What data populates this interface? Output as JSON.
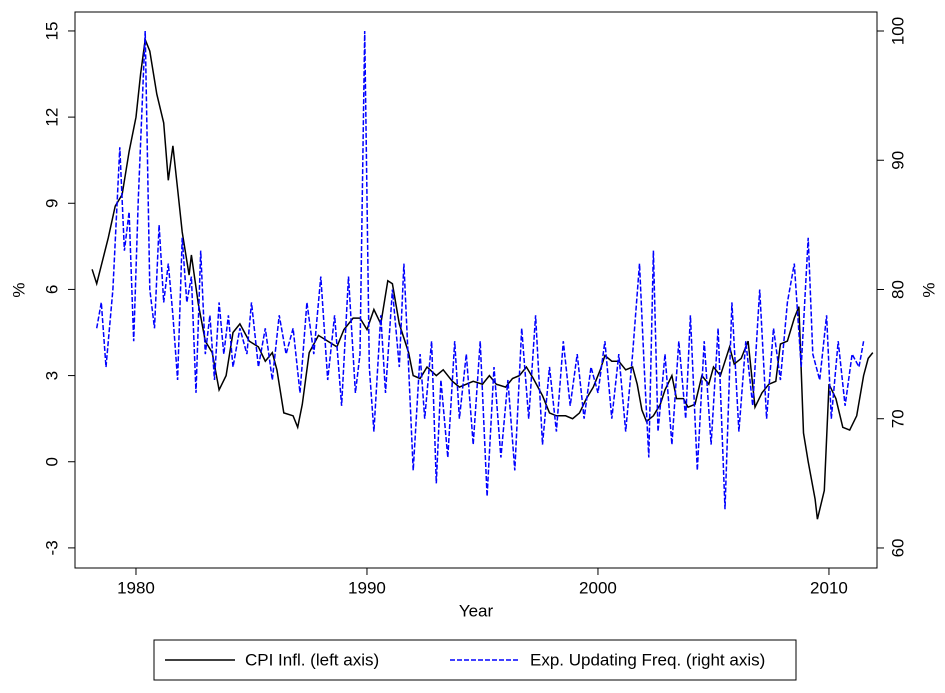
{
  "chart_data": {
    "type": "line",
    "x_label": "Year",
    "y_label": "%",
    "y2_label": "%",
    "xlim": [
      1977.36,
      2012.08
    ],
    "xticks": [
      1980,
      1990,
      2000,
      2010
    ],
    "ylim": [
      -3.7,
      15.66
    ],
    "yticks": [
      -3,
      0,
      3,
      6,
      9,
      12,
      15
    ],
    "y2lim": [
      58.45,
      101.47
    ],
    "y2ticks": [
      60,
      70,
      80,
      90,
      100
    ],
    "legend": "bottom",
    "series": [
      {
        "name": "CPI Infl. (left axis)",
        "color": "#000000",
        "line_style": "solid",
        "axis": "y",
        "x": [
          1978.1,
          1978.3,
          1978.8,
          1979.1,
          1979.4,
          1979.7,
          1980.0,
          1980.2,
          1980.4,
          1980.6,
          1980.9,
          1981.2,
          1981.4,
          1981.6,
          1981.8,
          1982.0,
          1982.3,
          1982.4,
          1982.7,
          1983.0,
          1983.3,
          1983.6,
          1983.9,
          1984.2,
          1984.5,
          1984.9,
          1985.3,
          1985.6,
          1985.9,
          1986.1,
          1986.4,
          1986.8,
          1987.0,
          1987.2,
          1987.5,
          1987.9,
          1988.3,
          1988.7,
          1989.0,
          1989.4,
          1989.7,
          1990.0,
          1990.3,
          1990.6,
          1990.9,
          1991.1,
          1991.4,
          1991.8,
          1992.0,
          1992.3,
          1992.6,
          1993.0,
          1993.3,
          1993.7,
          1994.0,
          1994.3,
          1994.6,
          1995.0,
          1995.3,
          1995.6,
          1996.0,
          1996.3,
          1996.6,
          1996.9,
          1997.2,
          1997.6,
          1997.9,
          1998.2,
          1998.6,
          1998.9,
          1999.2,
          1999.5,
          1999.8,
          2000.1,
          2000.3,
          2000.6,
          2000.9,
          2001.2,
          2001.5,
          2001.7,
          2001.9,
          2002.1,
          2002.4,
          2002.7,
          2002.9,
          2003.2,
          2003.4,
          2003.7,
          2003.9,
          2004.2,
          2004.5,
          2004.8,
          2005.0,
          2005.3,
          2005.7,
          2005.9,
          2006.2,
          2006.5,
          2006.8,
          2007.1,
          2007.4,
          2007.7,
          2007.9,
          2008.2,
          2008.5,
          2008.7,
          2008.9,
          2009.1,
          2009.4,
          2009.5,
          2009.8,
          2010.0,
          2010.3,
          2010.6,
          2010.9,
          2011.2,
          2011.5,
          2011.7,
          2011.9
        ],
        "values": [
          6.7,
          6.2,
          7.8,
          8.9,
          9.3,
          10.8,
          12,
          13.5,
          14.7,
          14.3,
          12.8,
          11.8,
          9.8,
          11,
          9.5,
          8,
          6.5,
          7.2,
          5.5,
          4.2,
          3.8,
          2.5,
          3,
          4.5,
          4.8,
          4.2,
          4.0,
          3.5,
          3.8,
          3.2,
          1.7,
          1.6,
          1.2,
          2.0,
          3.8,
          4.4,
          4.2,
          4.0,
          4.6,
          5.0,
          5.0,
          4.6,
          5.3,
          4.8,
          6.3,
          6.2,
          4.8,
          3.8,
          3.0,
          2.9,
          3.3,
          3.0,
          3.2,
          2.8,
          2.6,
          2.7,
          2.8,
          2.7,
          3.0,
          2.7,
          2.6,
          2.9,
          3.0,
          3.3,
          2.9,
          2.3,
          1.7,
          1.6,
          1.6,
          1.5,
          1.7,
          2.2,
          2.6,
          3.2,
          3.7,
          3.5,
          3.5,
          3.2,
          3.3,
          2.7,
          1.8,
          1.4,
          1.6,
          2.0,
          2.5,
          3.0,
          2.2,
          2.2,
          1.9,
          2.0,
          3.0,
          2.7,
          3.3,
          3.0,
          4.0,
          3.4,
          3.6,
          4.2,
          1.9,
          2.4,
          2.7,
          2.8,
          4.1,
          4.2,
          5.0,
          5.4,
          1.0,
          0.0,
          -1.3,
          -2.0,
          -1.0,
          2.7,
          2.2,
          1.2,
          1.1,
          1.6,
          3.0,
          3.6,
          3.8
        ]
      },
      {
        "name": "Exp. Updating Freq. (right axis)",
        "color": "#0000ff",
        "line_style": "dashed",
        "axis": "y2",
        "x": [
          1978.3,
          1978.5,
          1978.7,
          1979.0,
          1979.3,
          1979.5,
          1979.7,
          1979.9,
          1980.1,
          1980.4,
          1980.6,
          1980.8,
          1981.0,
          1981.2,
          1981.4,
          1981.6,
          1981.8,
          1982.0,
          1982.2,
          1982.4,
          1982.6,
          1982.8,
          1983.0,
          1983.2,
          1983.4,
          1983.6,
          1983.8,
          1984.0,
          1984.2,
          1984.5,
          1984.8,
          1985.0,
          1985.3,
          1985.6,
          1985.9,
          1986.2,
          1986.5,
          1986.8,
          1987.1,
          1987.4,
          1987.7,
          1988.0,
          1988.3,
          1988.6,
          1988.9,
          1989.2,
          1989.5,
          1989.7,
          1989.9,
          1990.1,
          1990.3,
          1990.6,
          1990.8,
          1991.1,
          1991.4,
          1991.6,
          1991.8,
          1992.0,
          1992.3,
          1992.5,
          1992.8,
          1993.0,
          1993.2,
          1993.5,
          1993.8,
          1994.0,
          1994.3,
          1994.6,
          1994.9,
          1995.2,
          1995.5,
          1995.8,
          1996.1,
          1996.4,
          1996.7,
          1997.0,
          1997.3,
          1997.6,
          1997.9,
          1998.2,
          1998.5,
          1998.8,
          1999.1,
          1999.4,
          1999.7,
          2000.0,
          2000.3,
          2000.6,
          2000.9,
          2001.2,
          2001.5,
          2001.8,
          2002.0,
          2002.2,
          2002.4,
          2002.6,
          2002.9,
          2003.2,
          2003.5,
          2003.8,
          2004.0,
          2004.3,
          2004.6,
          2004.9,
          2005.2,
          2005.5,
          2005.8,
          2006.1,
          2006.4,
          2006.7,
          2007.0,
          2007.3,
          2007.6,
          2007.9,
          2008.2,
          2008.5,
          2008.8,
          2009.1,
          2009.3,
          2009.6,
          2009.9,
          2010.1,
          2010.4,
          2010.7,
          2011.0,
          2011.3,
          2011.5
        ],
        "values": [
          77,
          79,
          74,
          80,
          91,
          83,
          86,
          76,
          87,
          100,
          80,
          77,
          85,
          79,
          82,
          78,
          73,
          84,
          79,
          81,
          72,
          83,
          75,
          78,
          73,
          79,
          75,
          78,
          74,
          77,
          75,
          79,
          74,
          77,
          73,
          78,
          75,
          77,
          72,
          79,
          75,
          81,
          73,
          78,
          71,
          81,
          72,
          75,
          100,
          74,
          69,
          78,
          72,
          80,
          74,
          82,
          74,
          66,
          75,
          70,
          76,
          65,
          73,
          67,
          76,
          70,
          75,
          68,
          76,
          64,
          74,
          67,
          73,
          66,
          77,
          70,
          78,
          68,
          74,
          69,
          76,
          71,
          75,
          70,
          74,
          72,
          76,
          70,
          75,
          69,
          75,
          82,
          74,
          67,
          83,
          69,
          75,
          68,
          76,
          70,
          78,
          66,
          76,
          68,
          77,
          63,
          79,
          69,
          76,
          71,
          80,
          70,
          77,
          73,
          79,
          82,
          74,
          84,
          75,
          73,
          78,
          70,
          76,
          71,
          75,
          74,
          76
        ]
      }
    ]
  }
}
